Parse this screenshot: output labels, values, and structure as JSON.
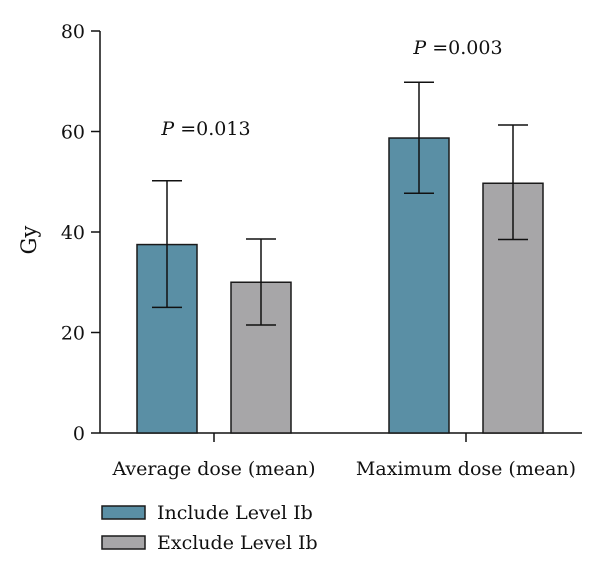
{
  "chart_data": {
    "type": "bar",
    "categories": [
      "Average dose (mean)",
      "Maximum dose (mean)"
    ],
    "series": [
      {
        "name": "Include Level Ib",
        "color": "#5a8fa5",
        "values": [
          37.5,
          58.7
        ],
        "error_low": [
          25.0,
          47.7
        ],
        "error_high": [
          50.2,
          69.8
        ]
      },
      {
        "name": "Exclude Level Ib",
        "color": "#a7a6a8",
        "values": [
          30.0,
          49.7
        ],
        "error_low": [
          21.5,
          38.5
        ],
        "error_high": [
          38.6,
          61.3
        ]
      }
    ],
    "annotations": [
      {
        "p_label": "P",
        "text": " =0.013",
        "category_index": 0
      },
      {
        "p_label": "P",
        "text": " =0.003",
        "category_index": 1
      }
    ],
    "ylabel": "Gy",
    "ylim": [
      0,
      80
    ],
    "yticks": [
      "0",
      "20",
      "40",
      "60",
      "80"
    ],
    "grid": false,
    "legend_position": "bottom-left"
  }
}
